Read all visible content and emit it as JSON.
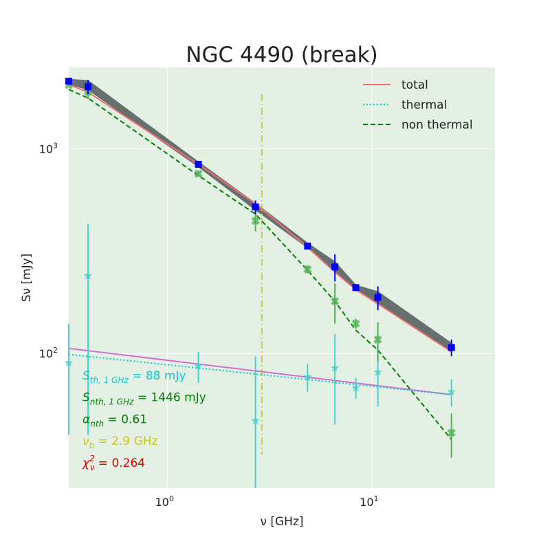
{
  "chart_data": {
    "type": "scatter",
    "title": "NGC 4490 (break)",
    "xlabel": "ν [GHz]",
    "ylabel": "Sν [mJy]",
    "x_scale": "log",
    "y_scale": "log",
    "xlim": [
      0.33,
      40
    ],
    "ylim": [
      22,
      2500
    ],
    "x_ticks": [
      {
        "value": 1,
        "base": "10",
        "exp": "0"
      },
      {
        "value": 10,
        "base": "10",
        "exp": "1"
      }
    ],
    "y_ticks": [
      {
        "value": 100,
        "base": "10",
        "exp": "2"
      },
      {
        "value": 1000,
        "base": "10",
        "exp": "3"
      }
    ],
    "grid": true,
    "legend_position": "top-right",
    "legend": [
      {
        "label": "total",
        "color": "#f07070",
        "style": "solid"
      },
      {
        "label": "thermal",
        "color": "#11c8c8",
        "style": "dotted"
      },
      {
        "label": "non thermal",
        "color": "#008000",
        "style": "dashed"
      }
    ],
    "colors": {
      "background": "#e5f0e5",
      "grid": "#ffffff",
      "observed": "#0000ff",
      "thermal_points": "#48d1cc",
      "nonthermal_points": "#4caf50",
      "break_line": "#c8d060",
      "model_band": "#505a5a",
      "purple_line": "#d070d0"
    },
    "annotations": [
      {
        "main": "S",
        "sub": "th, 1 GHz",
        "rest": " = 88 mJy",
        "color": "#11c8c8"
      },
      {
        "main": "S",
        "sub": "nth, 1 GHz",
        "rest": " = 1446 mJy",
        "color": "#008000"
      },
      {
        "main": "α",
        "sub": "nth",
        "rest": " = 0.61",
        "color": "#008000"
      },
      {
        "main": "ν",
        "sub": "b",
        "rest": " = 2.9 GHz",
        "color": "#c8c820"
      },
      {
        "main": "χ",
        "sup": "2",
        "sub": "ν",
        "rest": " = 0.264",
        "color": "#e00000"
      }
    ],
    "break_frequency": 2.9,
    "break_line_range": [
      32,
      1850
    ],
    "observed": [
      {
        "x": 0.33,
        "y": 2140,
        "err_lo": 40,
        "err_hi": 40
      },
      {
        "x": 0.41,
        "y": 2010,
        "err_lo": 160,
        "err_hi": 160
      },
      {
        "x": 1.42,
        "y": 840,
        "err_lo": 25,
        "err_hi": 25
      },
      {
        "x": 2.7,
        "y": 520,
        "err_lo": 40,
        "err_hi": 40
      },
      {
        "x": 4.85,
        "y": 335,
        "err_lo": 10,
        "err_hi": 10
      },
      {
        "x": 6.6,
        "y": 265,
        "err_lo": 40,
        "err_hi": 40
      },
      {
        "x": 8.35,
        "y": 210,
        "err_lo": 8,
        "err_hi": 8
      },
      {
        "x": 10.7,
        "y": 188,
        "err_lo": 25,
        "err_hi": 25
      },
      {
        "x": 24.5,
        "y": 107,
        "err_lo": 10,
        "err_hi": 10
      }
    ],
    "thermal_points": [
      {
        "x": 0.33,
        "y": 90,
        "err_lo": 50,
        "err_hi": 50
      },
      {
        "x": 0.41,
        "y": 240,
        "err_lo": 200,
        "err_hi": 190
      },
      {
        "x": 1.42,
        "y": 87,
        "err_lo": 15,
        "err_hi": 15
      },
      {
        "x": 2.7,
        "y": 47,
        "err_lo": 30,
        "err_hi": 50
      },
      {
        "x": 4.85,
        "y": 77,
        "err_lo": 12,
        "err_hi": 12
      },
      {
        "x": 6.6,
        "y": 85,
        "err_lo": 40,
        "err_hi": 40
      },
      {
        "x": 8.35,
        "y": 68,
        "err_lo": 8,
        "err_hi": 8
      },
      {
        "x": 10.7,
        "y": 81,
        "err_lo": 26,
        "err_hi": 26
      },
      {
        "x": 24.5,
        "y": 65,
        "err_lo": 10,
        "err_hi": 10
      }
    ],
    "nonthermal_points": [
      {
        "x": 0.33,
        "y": 2050,
        "err_lo": 30,
        "err_hi": 30
      },
      {
        "x": 0.41,
        "y": 1900,
        "err_lo": 150,
        "err_hi": 150
      },
      {
        "x": 1.42,
        "y": 755,
        "err_lo": 25,
        "err_hi": 25
      },
      {
        "x": 2.7,
        "y": 445,
        "err_lo": 50,
        "err_hi": 50
      },
      {
        "x": 4.85,
        "y": 258,
        "err_lo": 12,
        "err_hi": 12
      },
      {
        "x": 6.6,
        "y": 180,
        "err_lo": 40,
        "err_hi": 40
      },
      {
        "x": 8.35,
        "y": 140,
        "err_lo": 8,
        "err_hi": 8
      },
      {
        "x": 10.7,
        "y": 117,
        "err_lo": 25,
        "err_hi": 25
      },
      {
        "x": 24.5,
        "y": 41,
        "err_lo": 10,
        "err_hi": 10
      }
    ],
    "series": [
      {
        "name": "total",
        "x": [
          0.33,
          0.41,
          1.42,
          2.7,
          4.85,
          6.6,
          8.35,
          10.7,
          24.5
        ],
        "y": [
          2060,
          1890,
          840,
          540,
          330,
          250,
          205,
          175,
          102
        ]
      },
      {
        "name": "thermal",
        "x": [
          0.33,
          24.5
        ],
        "y": [
          99,
          63
        ]
      },
      {
        "name": "non thermal",
        "x": [
          0.33,
          0.41,
          1.42,
          2.7,
          4.85,
          6.6,
          8.35,
          10.7,
          24.5
        ],
        "y": [
          1950,
          1770,
          740,
          480,
          255,
          180,
          130,
          104,
          38
        ]
      }
    ],
    "model_band": {
      "x": [
        0.33,
        0.41,
        1.42,
        2.7,
        4.85,
        6.6,
        8.35,
        10.7,
        24.5
      ],
      "y_lo": [
        2080,
        1950,
        820,
        505,
        330,
        252,
        205,
        178,
        102
      ],
      "y_hi": [
        2180,
        2150,
        860,
        540,
        345,
        280,
        215,
        200,
        112
      ]
    },
    "purple_line": {
      "x": [
        0.33,
        24.5
      ],
      "y": [
        106,
        63
      ]
    }
  }
}
